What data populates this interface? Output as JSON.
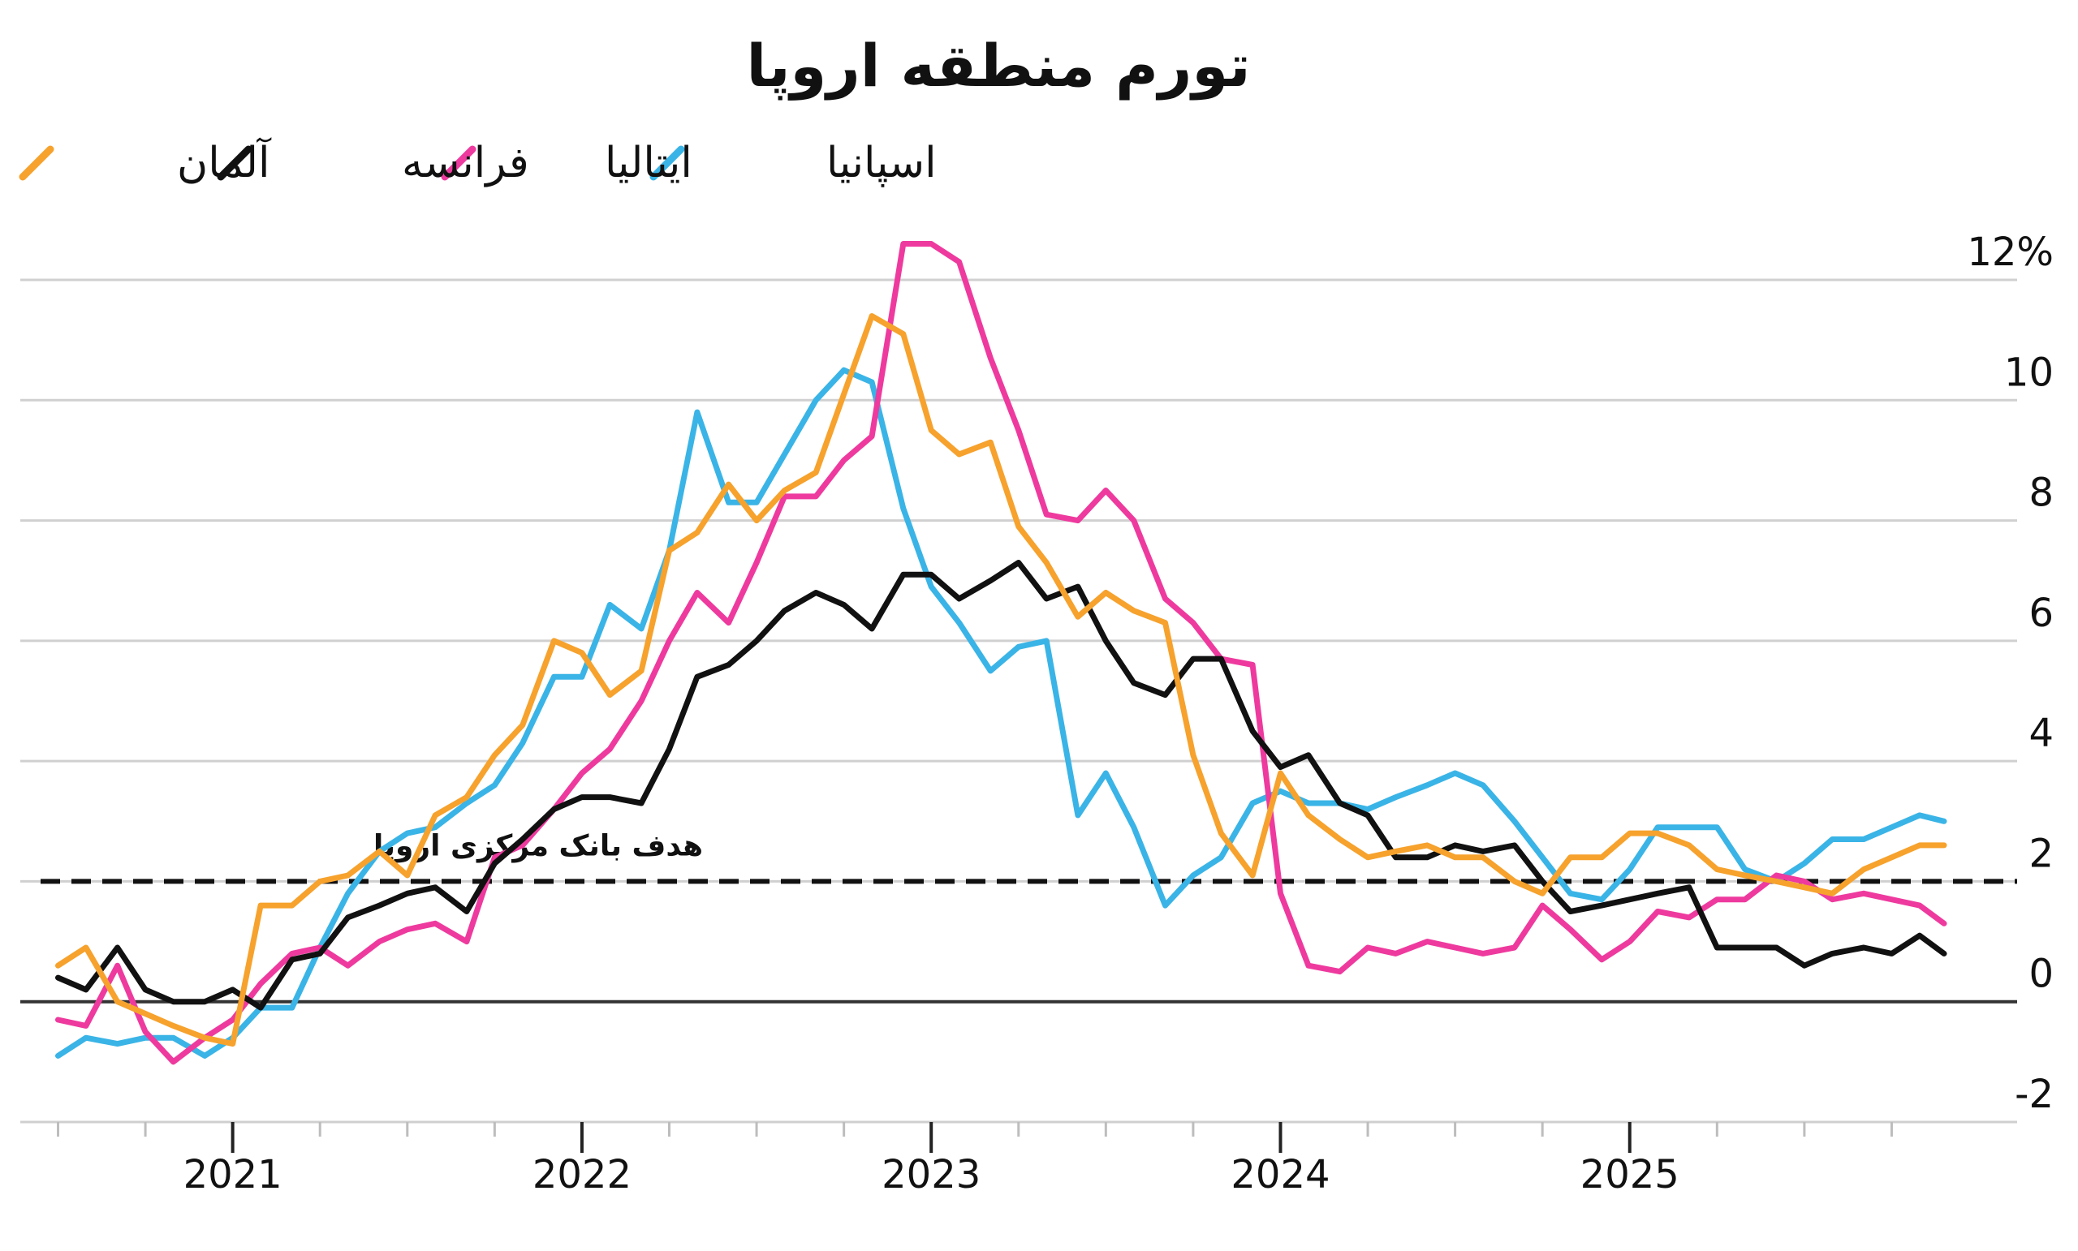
{
  "chart_data": {
    "type": "line",
    "title": "تورم منطقه اروپا",
    "xlabel": "",
    "ylabel": "",
    "xlim": [
      2020.45,
      2025.9
    ],
    "ylim": [
      -2,
      12
    ],
    "grid": true,
    "legend_position": "top-left",
    "y_ticks": [
      {
        "value": 12,
        "label": "12%"
      },
      {
        "value": 10,
        "label": "10"
      },
      {
        "value": 8,
        "label": "8"
      },
      {
        "value": 6,
        "label": "6"
      },
      {
        "value": 4,
        "label": "4"
      },
      {
        "value": 2,
        "label": "2"
      },
      {
        "value": 0,
        "label": "0"
      },
      {
        "value": -2,
        "label": "-2"
      }
    ],
    "x_ticks": [
      {
        "value": 2021,
        "label": "2021"
      },
      {
        "value": 2022,
        "label": "2022"
      },
      {
        "value": 2023,
        "label": "2023"
      },
      {
        "value": 2024,
        "label": "2024"
      },
      {
        "value": 2025,
        "label": "2025"
      }
    ],
    "reference_line": {
      "value": 2,
      "label": "هدف بانک مرکزی اروپا",
      "style": "dashed"
    },
    "series": [
      {
        "name": "اسپانیا",
        "color": "#3ab4e6",
        "points": [
          [
            2020.5,
            -0.9
          ],
          [
            2020.58,
            -0.6
          ],
          [
            2020.67,
            -0.7
          ],
          [
            2020.75,
            -0.6
          ],
          [
            2020.83,
            -0.6
          ],
          [
            2020.92,
            -0.9
          ],
          [
            2021.0,
            -0.6
          ],
          [
            2021.08,
            -0.1
          ],
          [
            2021.17,
            -0.1
          ],
          [
            2021.25,
            0.9
          ],
          [
            2021.33,
            1.8
          ],
          [
            2021.42,
            2.5
          ],
          [
            2021.5,
            2.8
          ],
          [
            2021.58,
            2.9
          ],
          [
            2021.67,
            3.3
          ],
          [
            2021.75,
            3.6
          ],
          [
            2021.83,
            4.3
          ],
          [
            2021.92,
            5.4
          ],
          [
            2022.0,
            5.4
          ],
          [
            2022.08,
            6.6
          ],
          [
            2022.17,
            6.2
          ],
          [
            2022.25,
            7.5
          ],
          [
            2022.33,
            9.8
          ],
          [
            2022.42,
            8.3
          ],
          [
            2022.5,
            8.3
          ],
          [
            2022.58,
            9.1
          ],
          [
            2022.67,
            10.0
          ],
          [
            2022.75,
            10.5
          ],
          [
            2022.83,
            10.3
          ],
          [
            2022.92,
            8.2
          ],
          [
            2023.0,
            6.9
          ],
          [
            2023.08,
            6.3
          ],
          [
            2023.17,
            5.5
          ],
          [
            2023.25,
            5.9
          ],
          [
            2023.33,
            6.0
          ],
          [
            2023.42,
            3.1
          ],
          [
            2023.5,
            3.8
          ],
          [
            2023.58,
            2.9
          ],
          [
            2023.67,
            1.6
          ],
          [
            2023.75,
            2.1
          ],
          [
            2023.83,
            2.4
          ],
          [
            2023.92,
            3.3
          ],
          [
            2024.0,
            3.5
          ],
          [
            2024.08,
            3.3
          ],
          [
            2024.17,
            3.3
          ],
          [
            2024.25,
            3.2
          ],
          [
            2024.33,
            3.4
          ],
          [
            2024.42,
            3.6
          ],
          [
            2024.5,
            3.8
          ],
          [
            2024.58,
            3.6
          ],
          [
            2024.67,
            3.0
          ],
          [
            2024.75,
            2.4
          ],
          [
            2024.83,
            1.8
          ],
          [
            2024.92,
            1.7
          ],
          [
            2025.0,
            2.2
          ],
          [
            2025.08,
            2.9
          ],
          [
            2025.17,
            2.9
          ],
          [
            2025.25,
            2.9
          ],
          [
            2025.33,
            2.2
          ],
          [
            2025.42,
            2.0
          ],
          [
            2025.5,
            2.3
          ],
          [
            2025.58,
            2.7
          ],
          [
            2025.67,
            2.7
          ],
          [
            2025.75,
            2.9
          ],
          [
            2025.83,
            3.1
          ],
          [
            2025.9,
            3.0
          ]
        ]
      },
      {
        "name": "ایتالیا",
        "color": "#ee3a9e",
        "points": [
          [
            2020.5,
            -0.3
          ],
          [
            2020.58,
            -0.4
          ],
          [
            2020.67,
            0.6
          ],
          [
            2020.75,
            -0.5
          ],
          [
            2020.83,
            -1.0
          ],
          [
            2020.92,
            -0.6
          ],
          [
            2021.0,
            -0.3
          ],
          [
            2021.08,
            0.3
          ],
          [
            2021.17,
            0.8
          ],
          [
            2021.25,
            0.9
          ],
          [
            2021.33,
            0.6
          ],
          [
            2021.42,
            1.0
          ],
          [
            2021.5,
            1.2
          ],
          [
            2021.58,
            1.3
          ],
          [
            2021.67,
            1.0
          ],
          [
            2021.75,
            2.4
          ],
          [
            2021.83,
            2.6
          ],
          [
            2021.92,
            3.2
          ],
          [
            2022.0,
            3.8
          ],
          [
            2022.08,
            4.2
          ],
          [
            2022.17,
            5.0
          ],
          [
            2022.25,
            6.0
          ],
          [
            2022.33,
            6.8
          ],
          [
            2022.42,
            6.3
          ],
          [
            2022.5,
            7.3
          ],
          [
            2022.58,
            8.4
          ],
          [
            2022.67,
            8.4
          ],
          [
            2022.75,
            9.0
          ],
          [
            2022.83,
            9.4
          ],
          [
            2022.92,
            12.6
          ],
          [
            2023.0,
            12.6
          ],
          [
            2023.08,
            12.3
          ],
          [
            2023.17,
            10.7
          ],
          [
            2023.25,
            9.5
          ],
          [
            2023.33,
            8.1
          ],
          [
            2023.42,
            8.0
          ],
          [
            2023.5,
            8.5
          ],
          [
            2023.58,
            8.0
          ],
          [
            2023.67,
            6.7
          ],
          [
            2023.75,
            6.3
          ],
          [
            2023.83,
            5.7
          ],
          [
            2023.92,
            5.6
          ],
          [
            2024.0,
            1.8
          ],
          [
            2024.08,
            0.6
          ],
          [
            2024.17,
            0.5
          ],
          [
            2024.25,
            0.9
          ],
          [
            2024.33,
            0.8
          ],
          [
            2024.42,
            1.0
          ],
          [
            2024.5,
            0.9
          ],
          [
            2024.58,
            0.8
          ],
          [
            2024.67,
            0.9
          ],
          [
            2024.75,
            1.6
          ],
          [
            2024.83,
            1.2
          ],
          [
            2024.92,
            0.7
          ],
          [
            2025.0,
            1.0
          ],
          [
            2025.08,
            1.5
          ],
          [
            2025.17,
            1.4
          ],
          [
            2025.25,
            1.7
          ],
          [
            2025.33,
            1.7
          ],
          [
            2025.42,
            2.1
          ],
          [
            2025.5,
            2.0
          ],
          [
            2025.58,
            1.7
          ],
          [
            2025.67,
            1.8
          ],
          [
            2025.75,
            1.7
          ],
          [
            2025.83,
            1.6
          ],
          [
            2025.9,
            1.3
          ]
        ]
      },
      {
        "name": "فرانسه",
        "color": "#111111",
        "points": [
          [
            2020.5,
            0.4
          ],
          [
            2020.58,
            0.2
          ],
          [
            2020.67,
            0.9
          ],
          [
            2020.75,
            0.2
          ],
          [
            2020.83,
            0.0
          ],
          [
            2020.92,
            0.0
          ],
          [
            2021.0,
            0.2
          ],
          [
            2021.08,
            -0.1
          ],
          [
            2021.17,
            0.7
          ],
          [
            2021.25,
            0.8
          ],
          [
            2021.33,
            1.4
          ],
          [
            2021.42,
            1.6
          ],
          [
            2021.5,
            1.8
          ],
          [
            2021.58,
            1.9
          ],
          [
            2021.67,
            1.5
          ],
          [
            2021.75,
            2.3
          ],
          [
            2021.83,
            2.7
          ],
          [
            2021.92,
            3.2
          ],
          [
            2022.0,
            3.4
          ],
          [
            2022.08,
            3.4
          ],
          [
            2022.17,
            3.3
          ],
          [
            2022.25,
            4.2
          ],
          [
            2022.33,
            5.4
          ],
          [
            2022.42,
            5.6
          ],
          [
            2022.5,
            6.0
          ],
          [
            2022.58,
            6.5
          ],
          [
            2022.67,
            6.8
          ],
          [
            2022.75,
            6.6
          ],
          [
            2022.83,
            6.2
          ],
          [
            2022.92,
            7.1
          ],
          [
            2023.0,
            7.1
          ],
          [
            2023.08,
            6.7
          ],
          [
            2023.17,
            7.0
          ],
          [
            2023.25,
            7.3
          ],
          [
            2023.33,
            6.7
          ],
          [
            2023.42,
            6.9
          ],
          [
            2023.5,
            6.0
          ],
          [
            2023.58,
            5.3
          ],
          [
            2023.67,
            5.1
          ],
          [
            2023.75,
            5.7
          ],
          [
            2023.83,
            5.7
          ],
          [
            2023.92,
            4.5
          ],
          [
            2024.0,
            3.9
          ],
          [
            2024.08,
            4.1
          ],
          [
            2024.17,
            3.3
          ],
          [
            2024.25,
            3.1
          ],
          [
            2024.33,
            2.4
          ],
          [
            2024.42,
            2.4
          ],
          [
            2024.5,
            2.6
          ],
          [
            2024.58,
            2.5
          ],
          [
            2024.67,
            2.6
          ],
          [
            2024.75,
            2.0
          ],
          [
            2024.83,
            1.5
          ],
          [
            2024.92,
            1.6
          ],
          [
            2025.0,
            1.7
          ],
          [
            2025.08,
            1.8
          ],
          [
            2025.17,
            1.9
          ],
          [
            2025.25,
            0.9
          ],
          [
            2025.33,
            0.9
          ],
          [
            2025.42,
            0.9
          ],
          [
            2025.5,
            0.6
          ],
          [
            2025.58,
            0.8
          ],
          [
            2025.67,
            0.9
          ],
          [
            2025.75,
            0.8
          ],
          [
            2025.83,
            1.1
          ],
          [
            2025.9,
            0.8
          ]
        ]
      },
      {
        "name": "آلمان",
        "color": "#f6a22d",
        "points": [
          [
            2020.5,
            0.6
          ],
          [
            2020.58,
            0.9
          ],
          [
            2020.67,
            0.0
          ],
          [
            2020.75,
            -0.2
          ],
          [
            2020.83,
            -0.4
          ],
          [
            2020.92,
            -0.6
          ],
          [
            2021.0,
            -0.7
          ],
          [
            2021.08,
            1.6
          ],
          [
            2021.17,
            1.6
          ],
          [
            2021.25,
            2.0
          ],
          [
            2021.33,
            2.1
          ],
          [
            2021.42,
            2.5
          ],
          [
            2021.5,
            2.1
          ],
          [
            2021.58,
            3.1
          ],
          [
            2021.67,
            3.4
          ],
          [
            2021.75,
            4.1
          ],
          [
            2021.83,
            4.6
          ],
          [
            2021.92,
            6.0
          ],
          [
            2022.0,
            5.8
          ],
          [
            2022.08,
            5.1
          ],
          [
            2022.17,
            5.5
          ],
          [
            2022.25,
            7.5
          ],
          [
            2022.33,
            7.8
          ],
          [
            2022.42,
            8.6
          ],
          [
            2022.5,
            8.0
          ],
          [
            2022.58,
            8.5
          ],
          [
            2022.67,
            8.8
          ],
          [
            2022.75,
            10.1
          ],
          [
            2022.83,
            11.4
          ],
          [
            2022.92,
            11.1
          ],
          [
            2023.0,
            9.5
          ],
          [
            2023.08,
            9.1
          ],
          [
            2023.17,
            9.3
          ],
          [
            2023.25,
            7.9
          ],
          [
            2023.33,
            7.3
          ],
          [
            2023.42,
            6.4
          ],
          [
            2023.5,
            6.8
          ],
          [
            2023.58,
            6.5
          ],
          [
            2023.67,
            6.3
          ],
          [
            2023.75,
            4.1
          ],
          [
            2023.83,
            2.8
          ],
          [
            2023.92,
            2.1
          ],
          [
            2024.0,
            3.8
          ],
          [
            2024.08,
            3.1
          ],
          [
            2024.17,
            2.7
          ],
          [
            2024.25,
            2.4
          ],
          [
            2024.33,
            2.5
          ],
          [
            2024.42,
            2.6
          ],
          [
            2024.5,
            2.4
          ],
          [
            2024.58,
            2.4
          ],
          [
            2024.67,
            2.0
          ],
          [
            2024.75,
            1.8
          ],
          [
            2024.83,
            2.4
          ],
          [
            2024.92,
            2.4
          ],
          [
            2025.0,
            2.8
          ],
          [
            2025.08,
            2.8
          ],
          [
            2025.17,
            2.6
          ],
          [
            2025.25,
            2.2
          ],
          [
            2025.33,
            2.1
          ],
          [
            2025.42,
            2.0
          ],
          [
            2025.5,
            1.9
          ],
          [
            2025.58,
            1.8
          ],
          [
            2025.67,
            2.2
          ],
          [
            2025.75,
            2.4
          ],
          [
            2025.83,
            2.6
          ],
          [
            2025.9,
            2.6
          ]
        ]
      }
    ]
  }
}
